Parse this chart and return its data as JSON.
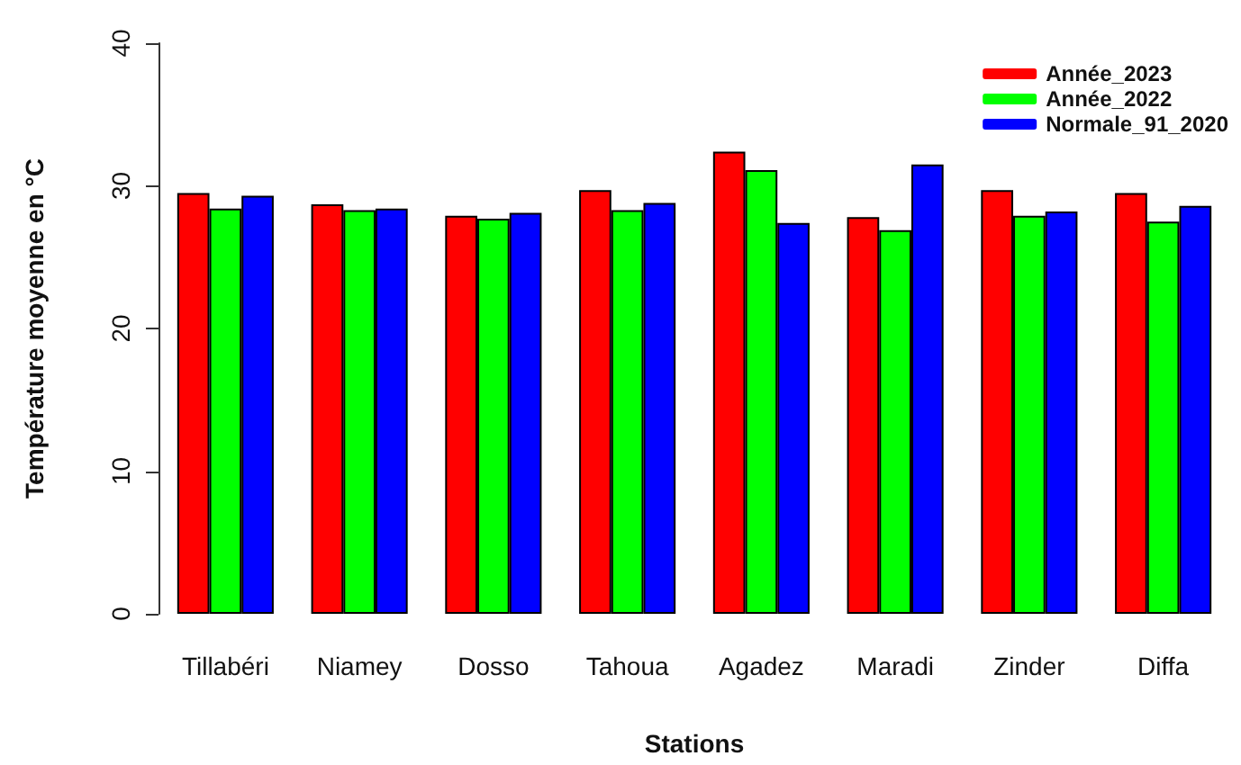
{
  "chart_data": {
    "type": "bar",
    "xlabel": "Stations",
    "ylabel": "Température moyenne en °C",
    "categories": [
      "Tillabéri",
      "Niamey",
      "Dosso",
      "Tahoua",
      "Agadez",
      "Maradi",
      "Zinder",
      "Diffa"
    ],
    "series": [
      {
        "name": "Année_2023",
        "color": "#ff0000",
        "values": [
          29.5,
          28.7,
          27.9,
          29.7,
          32.4,
          27.8,
          29.7,
          29.5
        ]
      },
      {
        "name": "Année_2022",
        "color": "#00ff00",
        "values": [
          28.4,
          28.3,
          27.7,
          28.3,
          31.1,
          26.9,
          27.9,
          27.5
        ]
      },
      {
        "name": "Normale_91_2020",
        "color": "#0000ff",
        "values": [
          29.3,
          28.4,
          28.1,
          28.8,
          27.4,
          31.5,
          28.2,
          28.6
        ]
      }
    ],
    "ylim": [
      0,
      40
    ],
    "yticks": [
      0,
      10,
      20,
      30,
      40
    ],
    "grid": false,
    "legend": "top right"
  }
}
